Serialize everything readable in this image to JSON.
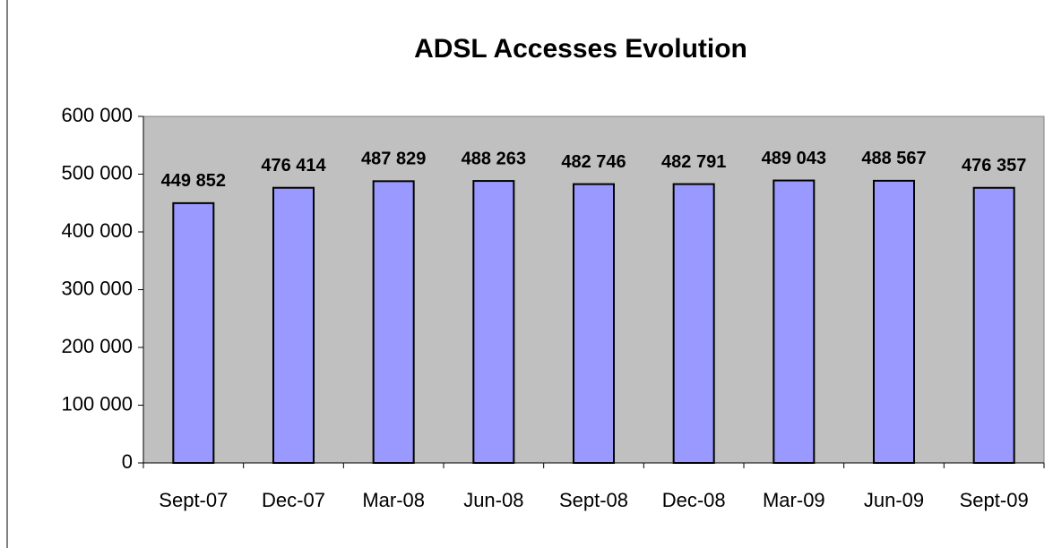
{
  "chart_data": {
    "type": "bar",
    "title": "ADSL Accesses Evolution",
    "categories": [
      "Sept-07",
      "Dec-07",
      "Mar-08",
      "Jun-08",
      "Sept-08",
      "Dec-08",
      "Mar-09",
      "Jun-09",
      "Sept-09"
    ],
    "values": [
      449852,
      476414,
      487829,
      488263,
      482746,
      482791,
      489043,
      488567,
      476357
    ],
    "value_labels": [
      "449 852",
      "476 414",
      "487 829",
      "488 263",
      "482 746",
      "482 791",
      "489 043",
      "488 567",
      "476 357"
    ],
    "color": "#9999ff",
    "ylim": [
      0,
      600000
    ],
    "yticks": [
      0,
      {
        "value": 100000,
        "label": "100 000"
      },
      {
        "value": 200000,
        "label": "200 000"
      },
      {
        "value": 300000,
        "label": "300 000"
      },
      {
        "value": 400000,
        "label": "400 000"
      },
      {
        "value": 500000,
        "label": "500 000"
      },
      {
        "value": 600000,
        "label": "600 000"
      }
    ]
  }
}
